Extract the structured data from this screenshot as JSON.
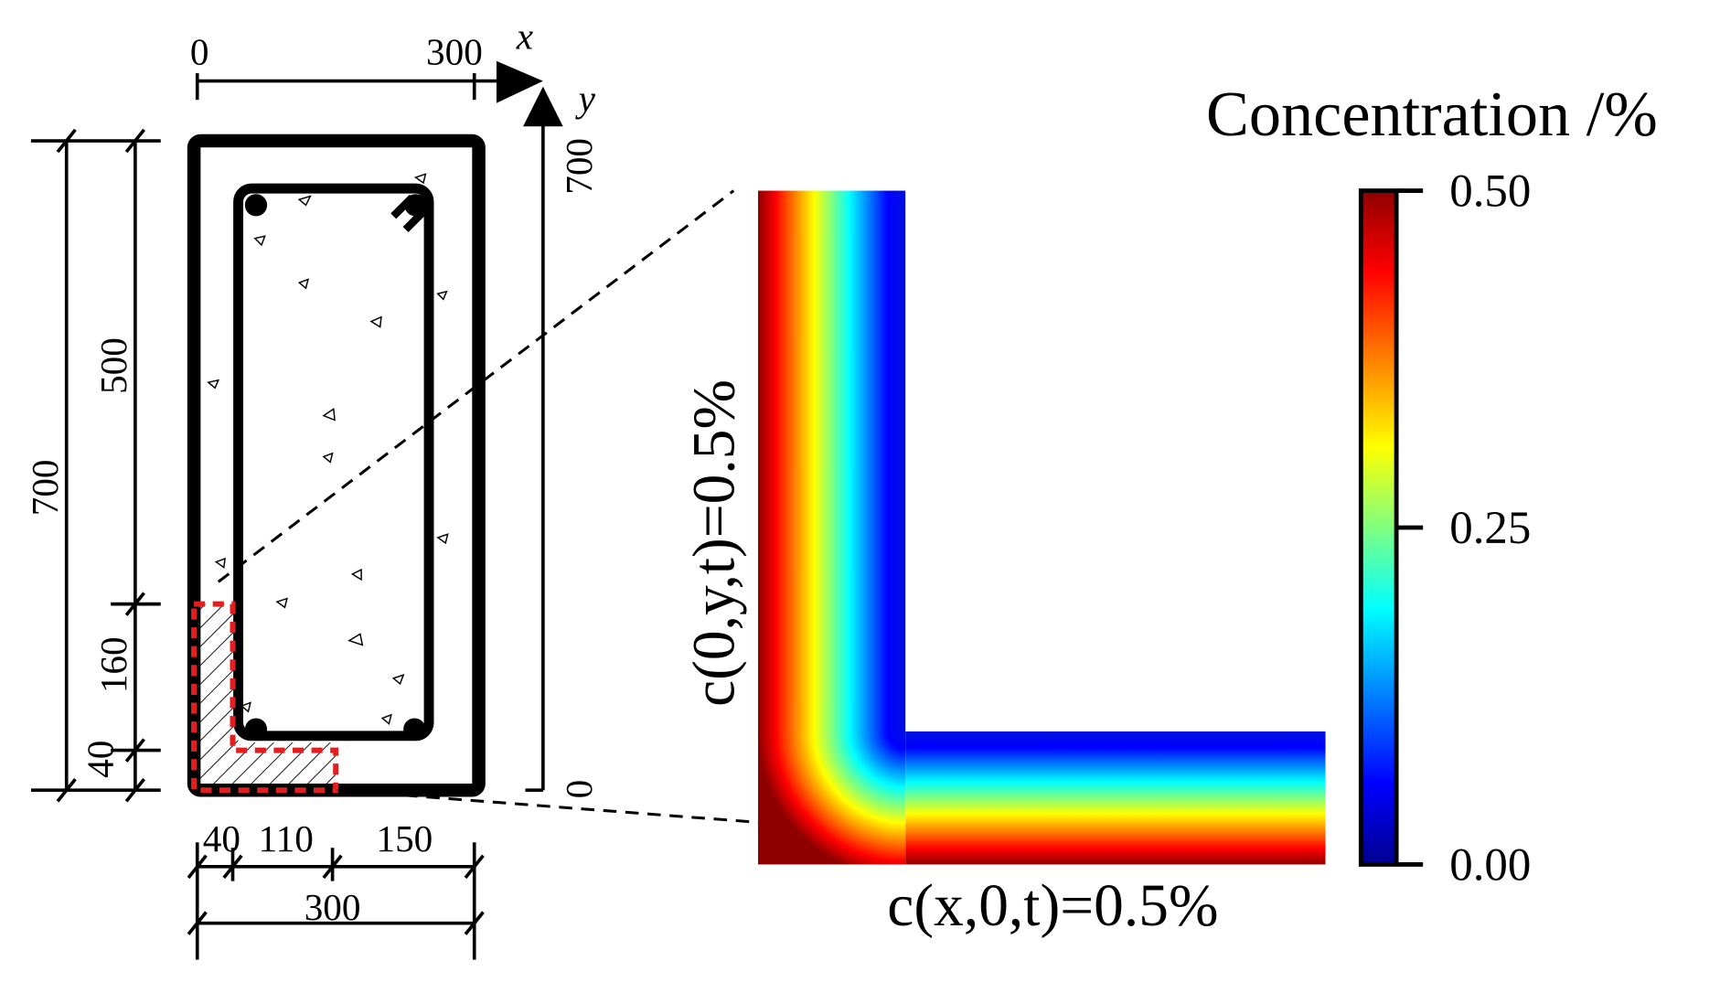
{
  "cross_section": {
    "x_axis": {
      "label": "x",
      "ticks": [
        "0",
        "300"
      ]
    },
    "y_axis": {
      "label": "y",
      "ticks": [
        "0",
        "700"
      ]
    },
    "dimensions_left": [
      "700",
      "500",
      "160",
      "40"
    ],
    "dimensions_bottom": [
      "40",
      "110",
      "150",
      "300"
    ]
  },
  "boundary_conditions": {
    "left": "c(0,y,t)=0.5%",
    "bottom": "c(x,0,t)=0.5%"
  },
  "colorbar": {
    "title": "Concentration /%",
    "ticks": [
      {
        "value": 0.5,
        "label": "0.50"
      },
      {
        "value": 0.25,
        "label": "0.25"
      },
      {
        "value": 0,
        "label": "0.00"
      }
    ]
  }
}
